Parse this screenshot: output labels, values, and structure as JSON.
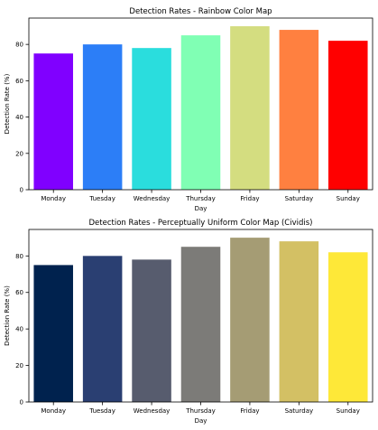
{
  "chart_data": [
    {
      "type": "bar",
      "title": "Detection Rates - Rainbow Color Map",
      "xlabel": "Day",
      "ylabel": "Detection Rate (%)",
      "categories": [
        "Monday",
        "Tuesday",
        "Wednesday",
        "Thursday",
        "Friday",
        "Saturday",
        "Sunday"
      ],
      "values": [
        75,
        80,
        78,
        85,
        90,
        88,
        82
      ],
      "colors": [
        "#8000ff",
        "#2c7ef7",
        "#2adddd",
        "#80ffb4",
        "#d4dd80",
        "#ff8040",
        "#ff0000"
      ],
      "ylim": [
        0,
        94.5
      ],
      "yticks": [
        0,
        20,
        40,
        60,
        80
      ],
      "grid": false
    },
    {
      "type": "bar",
      "title": "Detection Rates - Perceptually Uniform Color Map (Cividis)",
      "xlabel": "Day",
      "ylabel": "Detection Rate (%)",
      "categories": [
        "Monday",
        "Tuesday",
        "Wednesday",
        "Thursday",
        "Friday",
        "Saturday",
        "Sunday"
      ],
      "values": [
        75,
        80,
        78,
        85,
        90,
        88,
        82
      ],
      "colors": [
        "#00224e",
        "#2a3f72",
        "#575c6e",
        "#7c7b78",
        "#a59c74",
        "#d3c064",
        "#fee838"
      ],
      "ylim": [
        0,
        94.5
      ],
      "yticks": [
        0,
        20,
        40,
        60,
        80
      ],
      "grid": false
    }
  ]
}
